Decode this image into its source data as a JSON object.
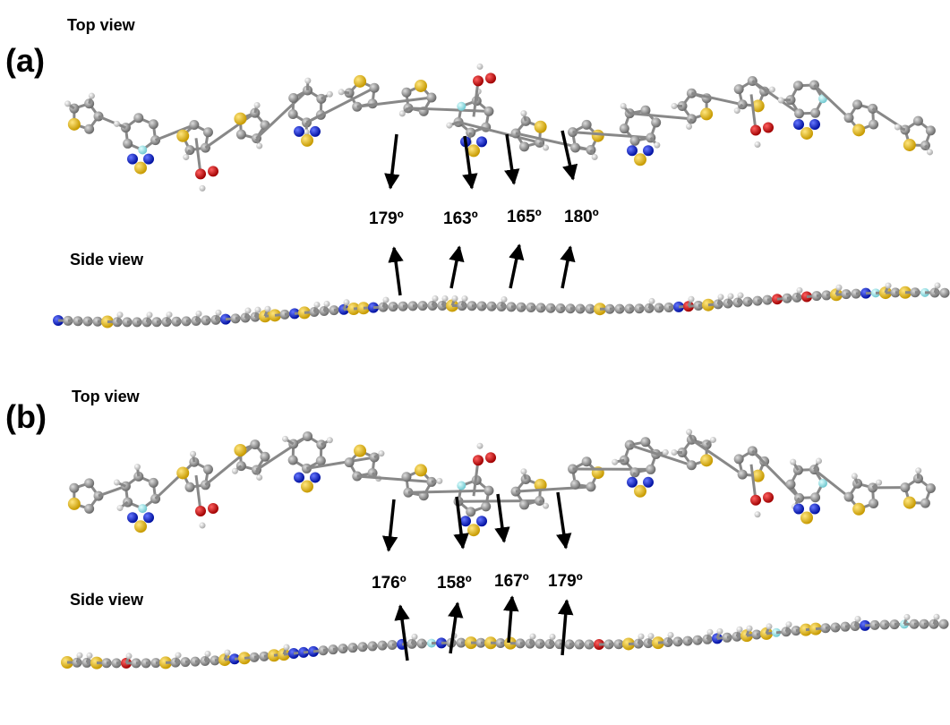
{
  "panels": [
    {
      "label": "(a)",
      "top_view": "Top view",
      "side_view": "Side view",
      "angles": [
        "179º",
        "163º",
        "165º",
        "180º"
      ]
    },
    {
      "label": "(b)",
      "top_view": "Top view",
      "side_view": "Side view",
      "angles": [
        "176º",
        "158º",
        "167º",
        "179º"
      ]
    }
  ]
}
